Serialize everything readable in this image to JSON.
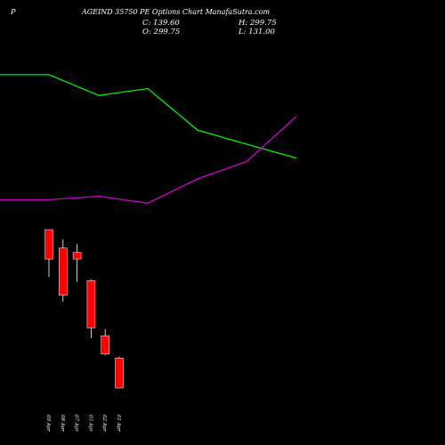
{
  "header": {
    "prefix": "P",
    "title": "AGEIND 35750  PE Options  Chart ManafaSutra.com",
    "close": "C: 139.60",
    "high": "H: 299.75",
    "open": "O: 299.75",
    "low": "L: 131.00"
  },
  "chart_data": {
    "type": "candlestick",
    "title": "AGEIND 35750  PE Options  Chart ManafaSutra.com",
    "grid": false,
    "colors": {
      "background": "#000000",
      "text": "#ffffff",
      "bearish_candle": "#ff0000",
      "green_line": "#00ee00",
      "magenta_line": "#cc00cc"
    },
    "candles": [
      {
        "label": "09 Apr",
        "open": 290,
        "high": 290,
        "low": 218,
        "close": 245
      },
      {
        "label": "08 Apr",
        "open": 262,
        "high": 275,
        "low": 180,
        "close": 190
      },
      {
        "label": "07 Apr",
        "open": 255,
        "high": 268,
        "low": 210,
        "close": 245
      },
      {
        "label": "03 Apr",
        "open": 212,
        "high": 214,
        "low": 124,
        "close": 140
      },
      {
        "label": "02 Apr",
        "open": 128,
        "high": 138,
        "low": 98,
        "close": 100
      },
      {
        "label": "01 Apr",
        "open": 94,
        "high": 96,
        "low": 48,
        "close": 48
      }
    ],
    "green_line": [
      {
        "x": 0,
        "y": 100
      },
      {
        "x": 1,
        "y": 100
      },
      {
        "x": 2,
        "y": 94
      },
      {
        "x": 3,
        "y": 96
      },
      {
        "x": 4,
        "y": 84
      },
      {
        "x": 5,
        "y": 80
      },
      {
        "x": 6,
        "y": 76
      }
    ],
    "magenta_line": [
      {
        "x": 0,
        "y": 64
      },
      {
        "x": 1,
        "y": 64
      },
      {
        "x": 2,
        "y": 65
      },
      {
        "x": 3,
        "y": 63
      },
      {
        "x": 4,
        "y": 70
      },
      {
        "x": 5,
        "y": 75
      },
      {
        "x": 6,
        "y": 88
      }
    ]
  }
}
